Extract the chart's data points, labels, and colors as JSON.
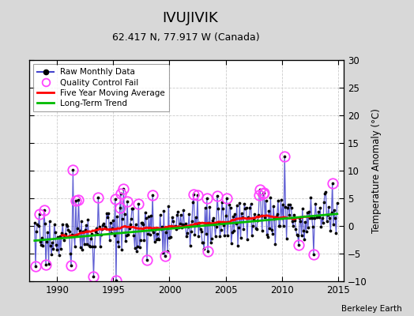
{
  "title": "IVUJIVIK",
  "subtitle": "62.417 N, 77.917 W (Canada)",
  "ylabel": "Temperature Anomaly (°C)",
  "watermark": "Berkeley Earth",
  "xlim": [
    1987.5,
    2015.5
  ],
  "ylim": [
    -10,
    30
  ],
  "yticks": [
    -10,
    -5,
    0,
    5,
    10,
    15,
    20,
    25,
    30
  ],
  "xticks": [
    1990,
    1995,
    2000,
    2005,
    2010,
    2015
  ],
  "raw_color": "#4444cc",
  "moving_avg_color": "#ff0000",
  "trend_color": "#00bb00",
  "qc_color": "#ff44ff",
  "bg_color": "#d8d8d8",
  "plot_bg": "#ffffff",
  "title_fontsize": 13,
  "subtitle_fontsize": 9,
  "trend_slope": 0.18,
  "trend_at2000": -0.5,
  "noise_std": 2.5,
  "spike_std": 4.5,
  "qc_threshold": 4.5,
  "seed": 17
}
